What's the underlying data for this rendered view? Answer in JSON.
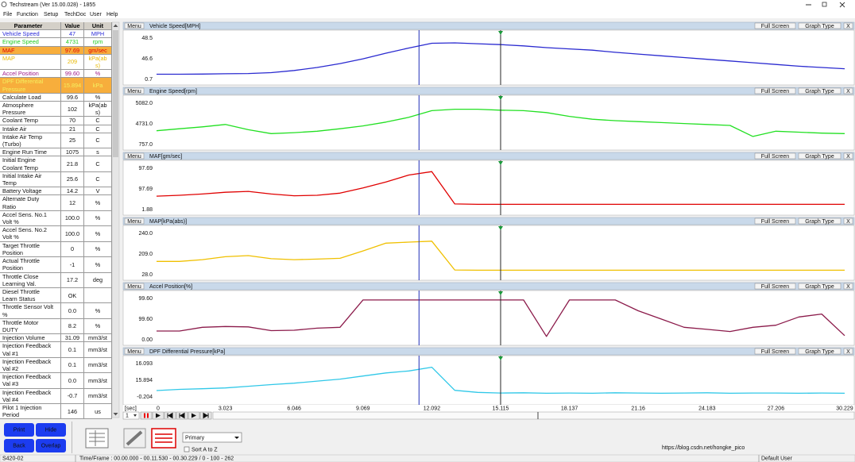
{
  "window": {
    "title": "Techstream (Ver 15.00.028) - 1855"
  },
  "menu": [
    "File",
    "Function",
    "Setup",
    "TechDoc",
    "User",
    "Help"
  ],
  "table": {
    "headers": [
      "Parameter",
      "Value",
      "Unit"
    ],
    "rows": [
      {
        "name": "Vehicle Speed",
        "value": "47",
        "unit": "MPH",
        "color": "#2a2ad8"
      },
      {
        "name": "Engine Speed",
        "value": "4731",
        "unit": "rpm",
        "color": "#22cc22"
      },
      {
        "name": "MAF",
        "value": "97.69",
        "unit": "gm/sec",
        "color": "#e00000",
        "highlight": "#f7ae3c"
      },
      {
        "name": "MAP",
        "value": "209",
        "unit": "kPa(abs)",
        "color": "#e8b800"
      },
      {
        "name": "Accel Position",
        "value": "99.60",
        "unit": "%",
        "color": "#a01a8a"
      },
      {
        "name": "DPF Differential Pressure",
        "value": "15.894",
        "unit": "kPa",
        "color": "#f4f060",
        "highlight": "#f7ae3c"
      },
      {
        "name": "Calculate Load",
        "value": "99.6",
        "unit": "%"
      },
      {
        "name": "Atmosphere Pressure",
        "value": "102",
        "unit": "kPa(abs)"
      },
      {
        "name": "Coolant Temp",
        "value": "70",
        "unit": "C"
      },
      {
        "name": "Intake Air",
        "value": "21",
        "unit": "C"
      },
      {
        "name": "Intake Air Temp (Turbo)",
        "value": "25",
        "unit": "C"
      },
      {
        "name": "Engine Run Time",
        "value": "1075",
        "unit": "s"
      },
      {
        "name": "Initial Engine Coolant Temp",
        "value": "21.8",
        "unit": "C"
      },
      {
        "name": "Initial Intake Air Temp",
        "value": "25.6",
        "unit": "C"
      },
      {
        "name": "Battery Voltage",
        "value": "14.2",
        "unit": "V"
      },
      {
        "name": "Alternate Duty Ratio",
        "value": "12",
        "unit": "%"
      },
      {
        "name": "Accel Sens. No.1 Volt %",
        "value": "100.0",
        "unit": "%"
      },
      {
        "name": "Accel Sens. No.2 Volt %",
        "value": "100.0",
        "unit": "%"
      },
      {
        "name": "Target Throttle Position",
        "value": "0",
        "unit": "%"
      },
      {
        "name": "Actual Throttle Position",
        "value": "-1",
        "unit": "%"
      },
      {
        "name": "Throttle Close Learning Val.",
        "value": "17.2",
        "unit": "deg"
      },
      {
        "name": "Diesel Throttle Learn Status",
        "value": "OK"
      },
      {
        "name": "Throttle Sensor Volt %",
        "value": "0.0",
        "unit": "%"
      },
      {
        "name": "Throttle Motor DUTY",
        "value": "8.2",
        "unit": "%"
      },
      {
        "name": "Injection Volume",
        "value": "31.09",
        "unit": "mm3/st"
      },
      {
        "name": "Injection Feedback Val #1",
        "value": "0.1",
        "unit": "mm3/st"
      },
      {
        "name": "Injection Feedback Val #2",
        "value": "0.1",
        "unit": "mm3/st"
      },
      {
        "name": "Injection Feedback Val #3",
        "value": "0.0",
        "unit": "mm3/st"
      },
      {
        "name": "Injection Feedback Val #4",
        "value": "-0.7",
        "unit": "mm3/st"
      },
      {
        "name": "Pilot 1 Injection Period",
        "value": "146",
        "unit": "us"
      }
    ]
  },
  "panel_buttons": {
    "menu": "Menu",
    "full_screen": "Full Screen",
    "graph_type": "Graph Type",
    "close": "X"
  },
  "graphs": [
    {
      "title": "Vehicle Speed[MPH]",
      "color": "#2a2ad0",
      "labels": [
        "48.5",
        "46.6",
        "0.7"
      ],
      "ylim": [
        0.7,
        48.5
      ],
      "values": [
        6.7,
        6.7,
        6.9,
        7.2,
        7.5,
        8.5,
        11,
        14.5,
        19,
        24.5,
        31,
        37,
        42.5,
        43,
        42,
        41,
        39.5,
        37.5,
        36,
        34.5,
        32,
        30,
        28,
        26,
        24,
        22,
        20,
        18,
        16,
        14.5,
        13
      ]
    },
    {
      "title": "Engine Speed[rpm]",
      "color": "#22e022",
      "labels": [
        "5082.0",
        "4731.0",
        "757.0"
      ],
      "ylim": [
        757,
        5082
      ],
      "values": [
        2200,
        2400,
        2600,
        2850,
        2300,
        1900,
        2000,
        2150,
        2400,
        2700,
        3100,
        3600,
        4300,
        4450,
        4450,
        4350,
        4300,
        4100,
        3700,
        3400,
        3250,
        3150,
        3050,
        2950,
        2850,
        2750,
        1600,
        2150,
        2050,
        1950,
        1900
      ]
    },
    {
      "title": "MAF[gm/sec]",
      "color": "#e00000",
      "labels": [
        "97.69",
        "97.69",
        "1.88"
      ],
      "ylim": [
        1.88,
        97.69
      ],
      "values": [
        33,
        35,
        38,
        42,
        44,
        38,
        34,
        35,
        40,
        52,
        66,
        82,
        90,
        15,
        14,
        14,
        14,
        14,
        14,
        14,
        14,
        14,
        14,
        14,
        14,
        14,
        14,
        14,
        14,
        14,
        14
      ]
    },
    {
      "title": "MAP[kPa(abs)]",
      "color": "#f0c000",
      "labels": [
        "240.0",
        "209.0",
        "28.0"
      ],
      "ylim": [
        28,
        240
      ],
      "values": [
        96,
        96,
        105,
        120,
        126,
        110,
        105,
        108,
        112,
        150,
        190,
        195,
        200,
        52,
        51,
        51,
        51,
        51,
        51,
        51,
        51,
        51,
        51,
        51,
        51,
        51,
        51,
        51,
        51,
        51,
        51
      ]
    },
    {
      "title": "Accel Position[%]",
      "color": "#8b1a4a",
      "labels": [
        "99.60",
        "99.60",
        "0.00"
      ],
      "ylim": [
        0,
        99.6
      ],
      "values": [
        21,
        21,
        30,
        32,
        31,
        22,
        23,
        28,
        30,
        96,
        96,
        96,
        96,
        96,
        96,
        96,
        96,
        8,
        96,
        96,
        96,
        70,
        50,
        30,
        25,
        20,
        30,
        35,
        55,
        62,
        10
      ]
    },
    {
      "title": "DPF Differential Pressure[kPa]",
      "color": "#30c8e8",
      "labels": [
        "16.093",
        "15.894",
        "-0.204"
      ],
      "ylim": [
        -0.204,
        16.093
      ],
      "values": [
        2.9,
        3.5,
        3.8,
        4.2,
        5,
        5.8,
        6.5,
        7.5,
        8.5,
        10,
        11.5,
        12.5,
        14.3,
        3,
        2,
        1.7,
        1.8,
        1.6,
        1.7,
        1.6,
        1.8,
        1.7,
        1.6,
        1.7,
        1.8,
        1.6,
        1.7,
        1.7,
        1.6,
        1.7,
        1.6
      ]
    }
  ],
  "time_axis": {
    "unit": "[sec]",
    "ticks": [
      "0",
      "3.023",
      "6.046",
      "9.069",
      "12.092",
      "15.115",
      "18.137",
      "21.16",
      "24.183",
      "27.206",
      "30.229"
    ],
    "xlim": [
      0,
      30.229
    ],
    "cursor_a": 11.53,
    "cursor_b": 15.115,
    "frame": "1"
  },
  "buttons": [
    "Print",
    "Hide",
    "Back",
    "Overlap"
  ],
  "display": {
    "select": "Primary",
    "checkbox": "Sort A to Z"
  },
  "watermark": "https://blog.csdn.net/hongke_pico",
  "status": [
    "S420-02",
    "Time/Frame : 00.00.000 - 00.11.530 - 00.30.229 / 0 - 100 - 262",
    "Default User"
  ]
}
